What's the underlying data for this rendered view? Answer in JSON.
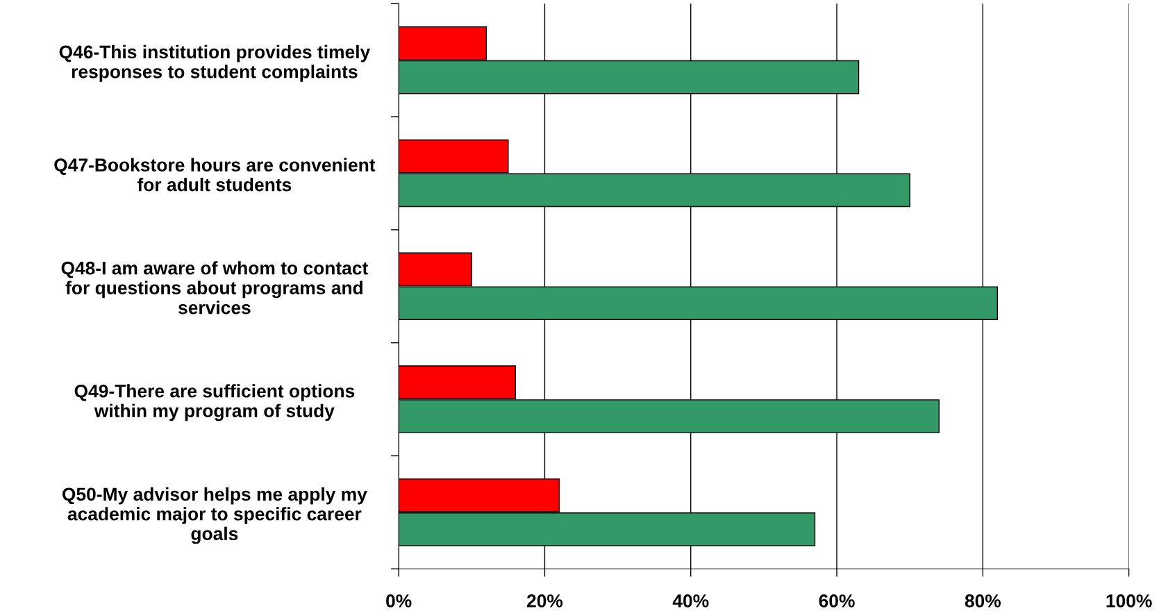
{
  "chart_data": {
    "type": "bar",
    "orientation": "horizontal",
    "categories": [
      "Q46-This institution provides timely\nresponses to student complaints",
      "Q47-Bookstore hours are convenient\nfor adult students",
      "Q48-I am aware of whom to contact\nfor questions about programs and\nservices",
      "Q49-There are sufficient options\nwithin my program of study",
      "Q50-My advisor helps me apply my\nacademic major to specific career\ngoals"
    ],
    "series": [
      {
        "color": "#ff0000",
        "values": [
          12,
          15,
          10,
          16,
          22
        ]
      },
      {
        "color": "#339966",
        "values": [
          63,
          70,
          82,
          74,
          57
        ]
      }
    ],
    "xlim": [
      0,
      100
    ],
    "xticks": [
      {
        "value": 0,
        "label": "0%"
      },
      {
        "value": 20,
        "label": "20%"
      },
      {
        "value": 40,
        "label": "40%"
      },
      {
        "value": 60,
        "label": "60%"
      },
      {
        "value": 80,
        "label": "80%"
      },
      {
        "value": 100,
        "label": "100%"
      }
    ],
    "grid": "x",
    "legend": false
  }
}
